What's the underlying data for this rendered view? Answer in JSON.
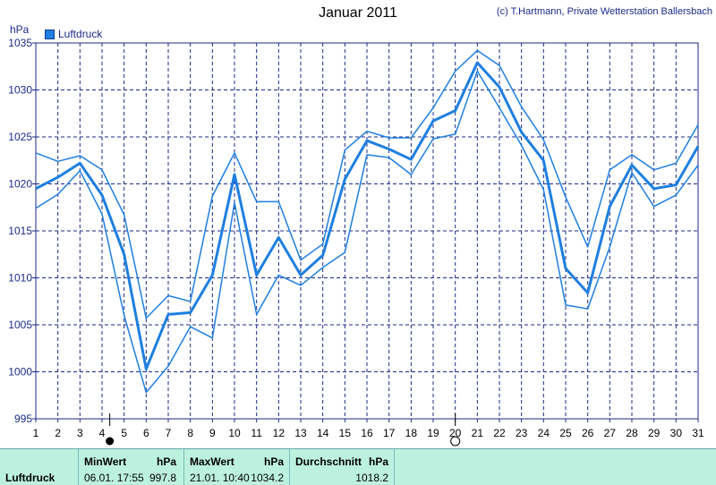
{
  "header": {
    "title": "Januar 2011",
    "copyright": "(c) T.Hartmann, Private Wetterstation Ballersbach",
    "unit": "hPa",
    "legend_label": "Luftdruck"
  },
  "colors": {
    "line": "#1e7fe0",
    "grid": "#1a2a8a",
    "stats_bg": "#bdf1df"
  },
  "chart_data": {
    "type": "line",
    "title": "Januar 2011",
    "ylabel": "hPa",
    "xlabel": "",
    "ylim": [
      995,
      1035
    ],
    "yticks": [
      995,
      1000,
      1005,
      1010,
      1015,
      1020,
      1025,
      1030,
      1035
    ],
    "x": [
      1,
      2,
      3,
      4,
      5,
      6,
      7,
      8,
      9,
      10,
      11,
      12,
      13,
      14,
      15,
      16,
      17,
      18,
      19,
      20,
      21,
      22,
      23,
      24,
      25,
      26,
      27,
      28,
      29,
      30,
      31
    ],
    "series": [
      {
        "name": "Luftdruck",
        "role": "mean",
        "values": [
          1019.5,
          1020.7,
          1022.2,
          1018.8,
          1012.5,
          1000.3,
          1006.1,
          1006.3,
          1010.3,
          1021.0,
          1010.3,
          1014.3,
          1010.3,
          1012.4,
          1020.5,
          1024.6,
          1023.7,
          1022.6,
          1026.7,
          1027.8,
          1032.9,
          1030.3,
          1025.5,
          1022.5,
          1011.0,
          1008.4,
          1017.6,
          1022.0,
          1019.5,
          1019.9,
          1024.0
        ]
      },
      {
        "name": "Luftdruck",
        "role": "max",
        "values": [
          1023.3,
          1022.4,
          1023.0,
          1021.5,
          1016.7,
          1005.7,
          1008.1,
          1007.5,
          1018.7,
          1023.3,
          1018.1,
          1018.1,
          1011.9,
          1013.6,
          1023.6,
          1025.6,
          1024.9,
          1024.9,
          1028.1,
          1032.0,
          1034.2,
          1032.6,
          1028.2,
          1024.7,
          1018.6,
          1013.3,
          1021.5,
          1023.1,
          1021.5,
          1022.2,
          1026.3
        ]
      },
      {
        "name": "Luftdruck",
        "role": "min",
        "values": [
          1017.4,
          1018.9,
          1021.4,
          1016.8,
          1006.0,
          997.8,
          1000.6,
          1004.8,
          1003.6,
          1018.0,
          1006.1,
          1010.3,
          1009.2,
          1011.1,
          1012.7,
          1023.1,
          1022.8,
          1021.0,
          1024.8,
          1025.3,
          1032.0,
          1028.1,
          1024.1,
          1019.4,
          1007.1,
          1006.7,
          1013.3,
          1021.2,
          1017.6,
          1018.8,
          1022.0
        ]
      }
    ],
    "markers": [
      {
        "x": 4.35,
        "kind": "filled-circle",
        "meaning": "min"
      },
      {
        "x": 20,
        "kind": "open-circle",
        "meaning": "max"
      }
    ],
    "grid": true,
    "legend_position": "top-left"
  },
  "stats": {
    "row_label": "Luftdruck",
    "min": {
      "header": "MinWert",
      "unit": "hPa",
      "time": "06.01.  17:55",
      "value": "997.8"
    },
    "max": {
      "header": "MaxWert",
      "unit": "hPa",
      "time": "21.01.  10:40",
      "value": "1034.2"
    },
    "avg": {
      "header": "Durchschnitt",
      "unit": "hPa",
      "value": "1018.2"
    }
  }
}
